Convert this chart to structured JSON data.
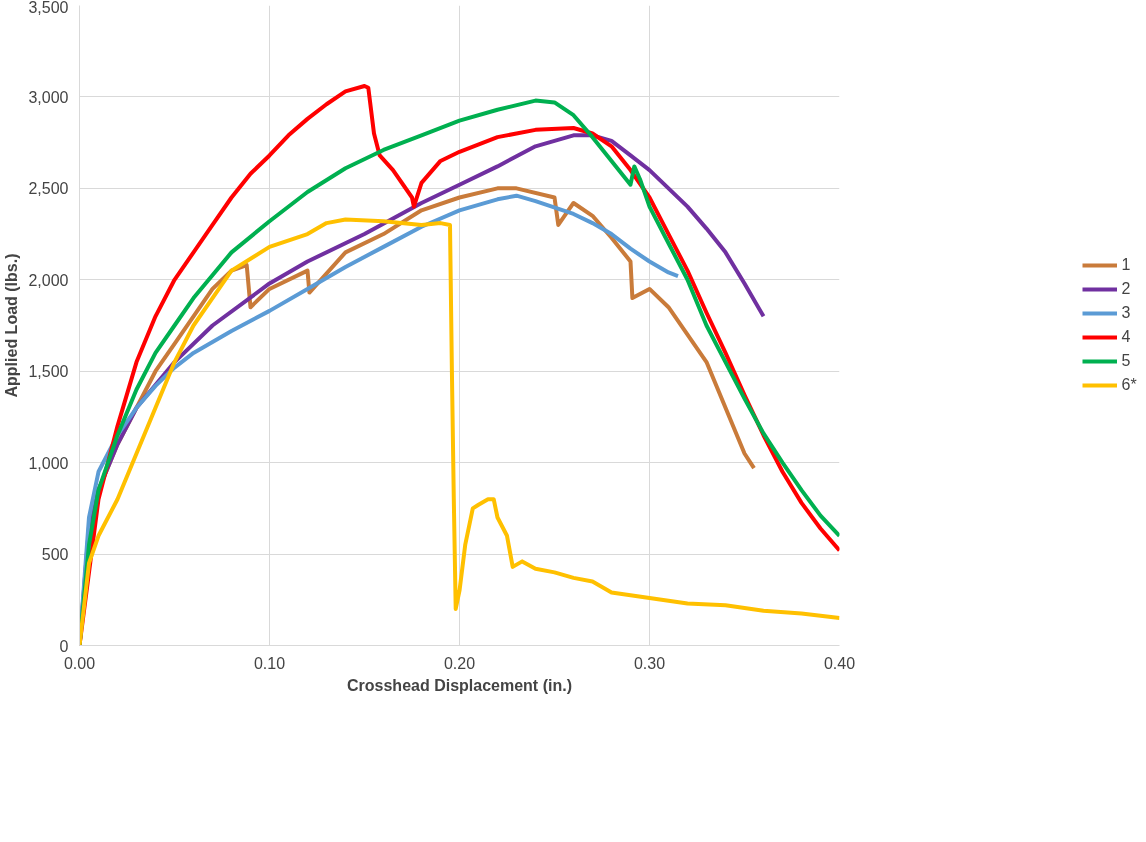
{
  "chart_data": {
    "type": "line",
    "xlabel": "Crosshead Displacement (in.)",
    "ylabel": "Applied Load (lbs.)",
    "xlim": [
      0,
      0.4
    ],
    "ylim": [
      0,
      3500
    ],
    "xticks": [
      {
        "value": 0,
        "label": "0.00"
      },
      {
        "value": 0.1,
        "label": "0.10"
      },
      {
        "value": 0.2,
        "label": "0.20"
      },
      {
        "value": 0.3,
        "label": "0.30"
      },
      {
        "value": 0.4,
        "label": "0.40"
      }
    ],
    "yticks": [
      0,
      500,
      {
        "value": 1000,
        "label": "1,000"
      },
      {
        "value": 1500,
        "label": "1,500"
      },
      {
        "value": 2000,
        "label": "2,000"
      },
      {
        "value": 2500,
        "label": "2,500"
      },
      {
        "value": 3000,
        "label": "3,000"
      },
      {
        "value": 3500,
        "label": "3,500"
      }
    ],
    "grid": true,
    "legend": "right",
    "marker": "none",
    "line_style": "solid",
    "series": [
      {
        "name": "1",
        "color": "#c97b3a",
        "x": [
          0,
          0.005,
          0.01,
          0.02,
          0.03,
          0.04,
          0.05,
          0.06,
          0.07,
          0.08,
          0.088,
          0.09,
          0.1,
          0.12,
          0.121,
          0.14,
          0.16,
          0.18,
          0.2,
          0.22,
          0.23,
          0.25,
          0.252,
          0.26,
          0.27,
          0.28,
          0.29,
          0.291,
          0.3,
          0.31,
          0.32,
          0.33,
          0.34,
          0.35,
          0.355
        ],
        "values": [
          0,
          600,
          850,
          1100,
          1300,
          1500,
          1650,
          1800,
          1950,
          2050,
          2080,
          1850,
          1950,
          2050,
          1930,
          2150,
          2250,
          2380,
          2450,
          2500,
          2500,
          2450,
          2300,
          2420,
          2350,
          2230,
          2100,
          1900,
          1950,
          1850,
          1700,
          1550,
          1300,
          1050,
          970
        ]
      },
      {
        "name": "2",
        "color": "#7030a0",
        "x": [
          0,
          0.005,
          0.01,
          0.02,
          0.03,
          0.05,
          0.07,
          0.1,
          0.12,
          0.15,
          0.18,
          0.2,
          0.22,
          0.24,
          0.26,
          0.27,
          0.28,
          0.29,
          0.3,
          0.31,
          0.32,
          0.33,
          0.34,
          0.35,
          0.36
        ],
        "values": [
          0,
          650,
          850,
          1100,
          1300,
          1550,
          1750,
          1980,
          2100,
          2250,
          2420,
          2520,
          2620,
          2730,
          2790,
          2790,
          2760,
          2680,
          2600,
          2500,
          2400,
          2280,
          2150,
          1980,
          1800
        ]
      },
      {
        "name": "3",
        "color": "#5b9bd5",
        "x": [
          0,
          0.005,
          0.01,
          0.02,
          0.03,
          0.04,
          0.05,
          0.06,
          0.08,
          0.1,
          0.12,
          0.14,
          0.16,
          0.18,
          0.2,
          0.22,
          0.23,
          0.24,
          0.26,
          0.27,
          0.28,
          0.29,
          0.3,
          0.31,
          0.315
        ],
        "values": [
          0,
          700,
          950,
          1150,
          1300,
          1420,
          1520,
          1600,
          1720,
          1830,
          1950,
          2070,
          2180,
          2290,
          2380,
          2440,
          2460,
          2430,
          2360,
          2310,
          2250,
          2170,
          2100,
          2040,
          2020
        ]
      },
      {
        "name": "4",
        "color": "#ff0000",
        "x": [
          0,
          0.01,
          0.02,
          0.03,
          0.04,
          0.05,
          0.06,
          0.07,
          0.08,
          0.09,
          0.1,
          0.11,
          0.12,
          0.13,
          0.14,
          0.15,
          0.152,
          0.155,
          0.158,
          0.165,
          0.175,
          0.176,
          0.18,
          0.19,
          0.2,
          0.22,
          0.24,
          0.26,
          0.27,
          0.28,
          0.29,
          0.3,
          0.31,
          0.32,
          0.33,
          0.34,
          0.35,
          0.36,
          0.37,
          0.38,
          0.39,
          0.4
        ],
        "values": [
          0,
          800,
          1200,
          1550,
          1800,
          2000,
          2150,
          2300,
          2450,
          2580,
          2680,
          2790,
          2880,
          2960,
          3030,
          3060,
          3050,
          2800,
          2680,
          2600,
          2450,
          2400,
          2530,
          2650,
          2700,
          2780,
          2820,
          2830,
          2800,
          2730,
          2600,
          2450,
          2250,
          2050,
          1820,
          1600,
          1370,
          1150,
          950,
          780,
          640,
          520
        ]
      },
      {
        "name": "5",
        "color": "#00b050",
        "x": [
          0,
          0.005,
          0.01,
          0.02,
          0.03,
          0.04,
          0.05,
          0.06,
          0.08,
          0.1,
          0.12,
          0.14,
          0.16,
          0.18,
          0.2,
          0.22,
          0.24,
          0.25,
          0.26,
          0.27,
          0.28,
          0.29,
          0.292,
          0.295,
          0.3,
          0.31,
          0.32,
          0.33,
          0.34,
          0.35,
          0.36,
          0.37,
          0.38,
          0.39,
          0.4
        ],
        "values": [
          0,
          550,
          850,
          1150,
          1400,
          1600,
          1750,
          1900,
          2150,
          2320,
          2480,
          2610,
          2710,
          2790,
          2870,
          2930,
          2980,
          2970,
          2900,
          2780,
          2650,
          2520,
          2620,
          2550,
          2400,
          2200,
          2000,
          1750,
          1550,
          1350,
          1160,
          1000,
          850,
          710,
          600
        ]
      },
      {
        "name": "6*",
        "color": "#ffc000",
        "x": [
          0,
          0.005,
          0.01,
          0.02,
          0.03,
          0.04,
          0.05,
          0.06,
          0.07,
          0.08,
          0.1,
          0.12,
          0.13,
          0.14,
          0.16,
          0.18,
          0.19,
          0.195,
          0.196,
          0.197,
          0.198,
          0.2,
          0.203,
          0.207,
          0.21,
          0.215,
          0.218,
          0.22,
          0.225,
          0.228,
          0.233,
          0.24,
          0.25,
          0.26,
          0.27,
          0.28,
          0.3,
          0.32,
          0.34,
          0.36,
          0.38,
          0.4
        ],
        "values": [
          0,
          450,
          600,
          800,
          1050,
          1300,
          1550,
          1750,
          1900,
          2050,
          2180,
          2250,
          2310,
          2330,
          2320,
          2300,
          2310,
          2300,
          1500,
          800,
          200,
          300,
          550,
          750,
          770,
          800,
          800,
          700,
          600,
          430,
          460,
          420,
          400,
          370,
          350,
          290,
          260,
          230,
          220,
          190,
          175,
          150
        ]
      }
    ]
  }
}
